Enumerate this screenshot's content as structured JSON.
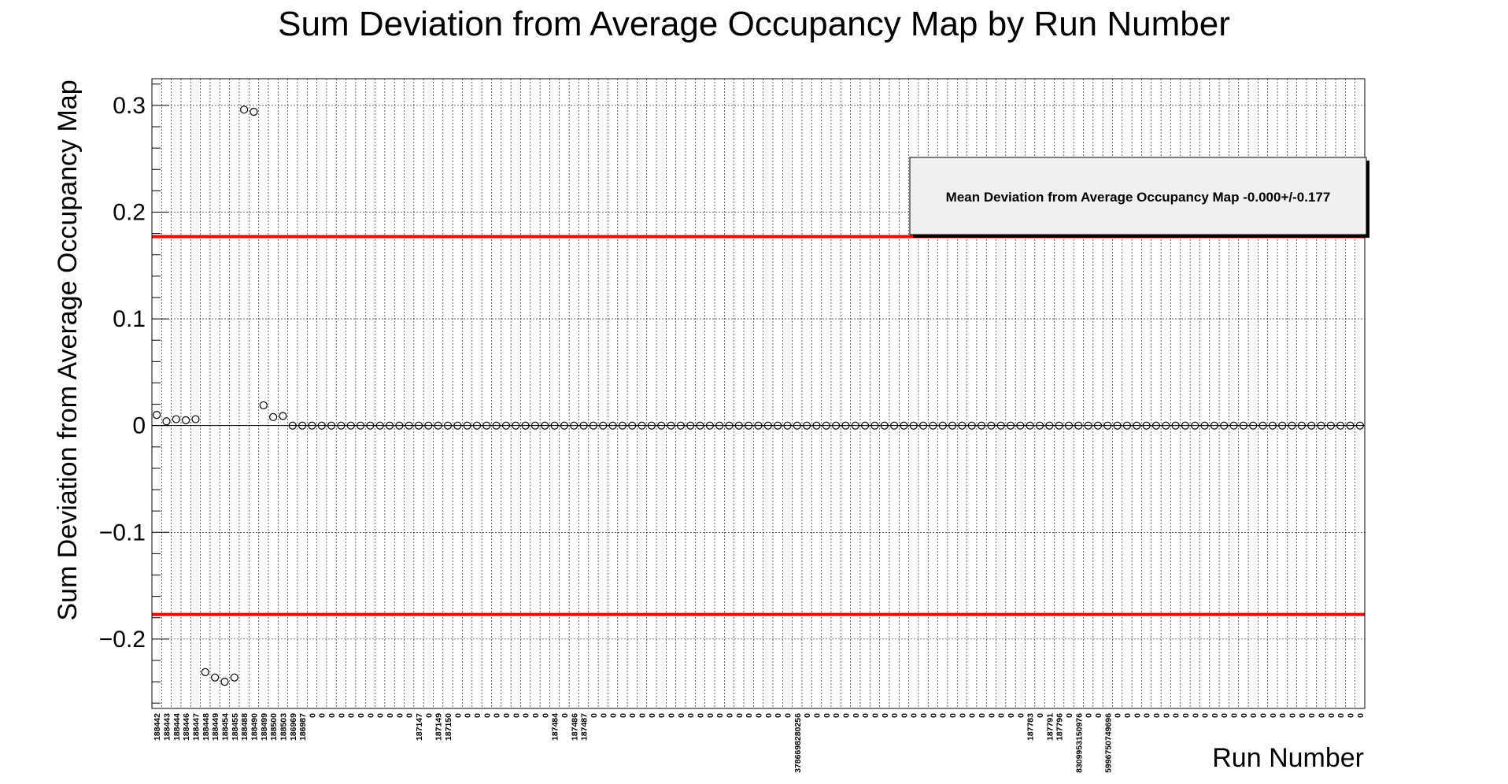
{
  "chart_data": {
    "type": "scatter",
    "title": "Sum Deviation from Average Occupancy Map by Run Number",
    "xlabel": "Run Number",
    "ylabel": "Sum Deviation from Average Occupancy Map",
    "ylim": [
      -0.265,
      0.325
    ],
    "yticks": [
      {
        "value": 0.3,
        "label": "0.3"
      },
      {
        "value": 0.2,
        "label": "0.2"
      },
      {
        "value": 0.1,
        "label": "0.1"
      },
      {
        "value": 0,
        "label": "0"
      },
      {
        "value": -0.1,
        "label": "−0.1"
      },
      {
        "value": -0.2,
        "label": "−0.2"
      }
    ],
    "grid": true,
    "categories": [
      "188442",
      "188443",
      "188444",
      "188446",
      "188447",
      "188448",
      "188449",
      "188454",
      "188455",
      "188488",
      "188490",
      "188499",
      "188500",
      "188503",
      "186969",
      "186987",
      "0",
      "0",
      "0",
      "0",
      "0",
      "0",
      "0",
      "0",
      "0",
      "0",
      "0",
      "187147",
      "0",
      "187149",
      "187150",
      "0",
      "0",
      "0",
      "0",
      "0",
      "0",
      "0",
      "0",
      "0",
      "0",
      "187484",
      "0",
      "187486",
      "187487",
      "0",
      "0",
      "0",
      "0",
      "0",
      "0",
      "0",
      "0",
      "0",
      "0",
      "0",
      "0",
      "0",
      "0",
      "0",
      "0",
      "0",
      "0",
      "0",
      "0",
      "0",
      "3786698280256",
      "0",
      "0",
      "0",
      "0",
      "0",
      "0",
      "0",
      "0",
      "0",
      "0",
      "0",
      "0",
      "0",
      "0",
      "0",
      "0",
      "0",
      "0",
      "0",
      "0",
      "0",
      "0",
      "0",
      "187783",
      "0",
      "187791",
      "187796",
      "0",
      "8309953150976",
      "0",
      "0",
      "5996750749696",
      "0",
      "0",
      "0",
      "0",
      "0",
      "0",
      "0",
      "0",
      "0",
      "0",
      "0",
      "0",
      "0",
      "0",
      "0",
      "0",
      "0",
      "0",
      "0",
      "0",
      "0",
      "0",
      "0",
      "0",
      "0",
      "0"
    ],
    "series": [
      {
        "values": [
          0.01,
          0.004,
          0.006,
          0.005,
          0.006,
          -0.231,
          -0.236,
          -0.24,
          -0.236,
          0.296,
          0.294,
          0.019,
          0.008,
          0.009,
          0,
          0,
          0,
          0,
          0,
          0,
          0,
          0,
          0,
          0,
          0,
          0,
          0,
          0,
          0,
          0,
          0,
          0,
          0,
          0,
          0,
          0,
          0,
          0,
          0,
          0,
          0,
          0,
          0,
          0,
          0,
          0,
          0,
          0,
          0,
          0,
          0,
          0,
          0,
          0,
          0,
          0,
          0,
          0,
          0,
          0,
          0,
          0,
          0,
          0,
          0,
          0,
          0,
          0,
          0,
          0,
          0,
          0,
          0,
          0,
          0,
          0,
          0,
          0,
          0,
          0,
          0,
          0,
          0,
          0,
          0,
          0,
          0,
          0,
          0,
          0,
          0,
          0,
          0,
          0,
          0,
          0,
          0,
          0,
          0,
          0,
          0,
          0,
          0,
          0,
          0,
          0,
          0,
          0,
          0,
          0,
          0,
          0,
          0,
          0,
          0,
          0,
          0,
          0,
          0,
          0,
          0,
          0,
          0,
          0,
          0
        ]
      }
    ],
    "reference_lines": [
      0.177,
      -0.177
    ],
    "legend": {
      "text": "Mean Deviation from Average Occupancy Map -0.000+/-0.177",
      "placement": "top-right"
    },
    "colors": {
      "reference_line": "#ff0000",
      "marker": "#000000",
      "legend_fill": "#f0f0f0",
      "grid": "#000000"
    }
  }
}
